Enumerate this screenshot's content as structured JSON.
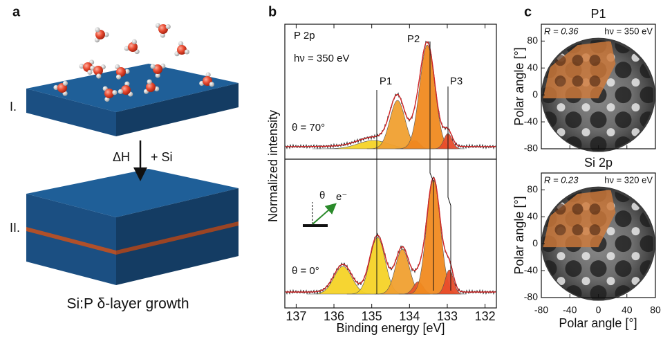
{
  "panel_a": {
    "label": "a",
    "step_1": "I.",
    "step_2": "II.",
    "arrow_label_1": "ΔH",
    "arrow_label_2": "+ Si",
    "caption": "Si:P δ-layer growth"
  },
  "panel_b": {
    "label": "b",
    "core_level": "P 2p",
    "photon_energy": "hν = 350 eV",
    "peak_labels": [
      "P1",
      "P2",
      "P3"
    ],
    "spectrum_labels": [
      "θ = 70°",
      "θ = 0°"
    ],
    "inset_labels": [
      "θ",
      "e⁻"
    ],
    "y_label": "Normalized intensity",
    "x_label": "Binding energy [eV]",
    "xlim": [
      137.3,
      131.7
    ],
    "xticks": [
      137,
      136,
      135,
      134,
      133,
      132
    ]
  },
  "panel_c": {
    "label": "c",
    "plots": [
      {
        "title": "P1",
        "r_annotation": "R = 0.36",
        "hv_annotation": "hν = 350 eV"
      },
      {
        "title": "Si 2p",
        "r_annotation": "R = 0.23",
        "hv_annotation": "hν = 320 eV"
      }
    ],
    "y_label": "Polar angle [°]",
    "x_label": "Polar angle [°]",
    "xlim": [
      -80,
      80
    ],
    "ylim": [
      -80,
      105
    ],
    "xticks": [
      -80,
      -40,
      0,
      40,
      80
    ],
    "yticks": [
      -80,
      -40,
      0,
      40,
      80
    ]
  }
}
